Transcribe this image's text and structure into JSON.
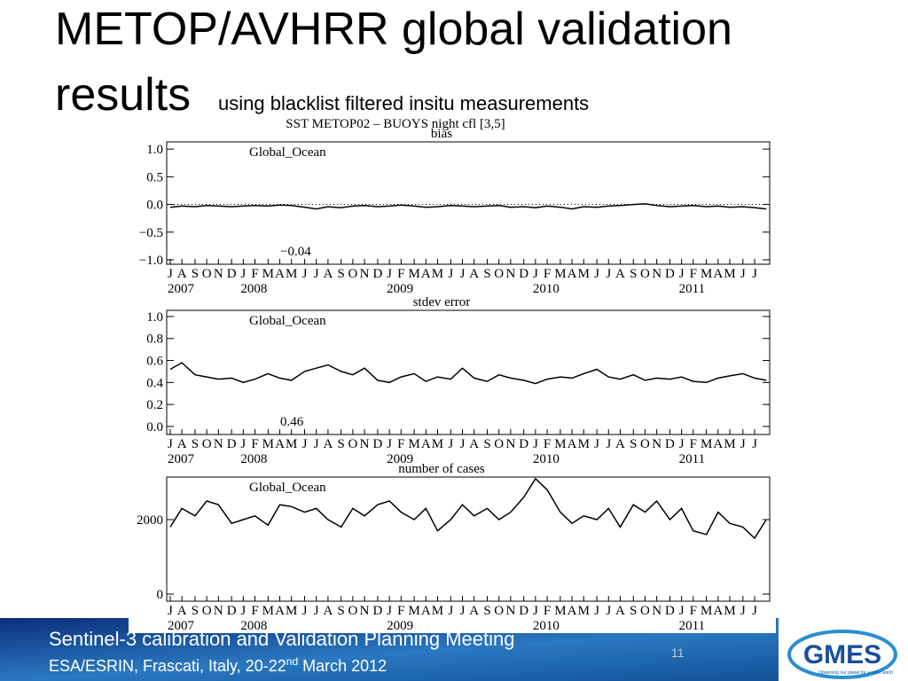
{
  "slide": {
    "title_line1": "METOP/AVHRR global validation",
    "title_line2": "results",
    "subtitle": "using blacklist filtered insitu measurements",
    "figure_title": "SST  METOP02 – BUOYS   night  cfl [3,5]",
    "footer_line1": "Sentinel-3 calibration and Validation Planning Meeting",
    "footer_line2a": "ESA/ESRIN, Frascati, Italy, 20-22",
    "footer_line2b": "nd",
    "footer_line2c": " March 2012",
    "page_number": "11",
    "logo_text": "GMES",
    "logo_tagline": "Observing our planet for a safer world"
  },
  "chart_data": [
    {
      "type": "line",
      "title": "bias",
      "region": "Global_Ocean",
      "annotation": "−0.04",
      "color": "#000000",
      "reference_line": 0,
      "x": [
        2007.5,
        2007.58,
        2007.67,
        2007.75,
        2007.83,
        2007.92,
        2008,
        2008.08,
        2008.17,
        2008.25,
        2008.33,
        2008.42,
        2008.5,
        2008.58,
        2008.67,
        2008.75,
        2008.83,
        2008.92,
        2009,
        2009.08,
        2009.17,
        2009.25,
        2009.33,
        2009.42,
        2009.5,
        2009.58,
        2009.67,
        2009.75,
        2009.83,
        2009.92,
        2010,
        2010.08,
        2010.17,
        2010.25,
        2010.33,
        2010.42,
        2010.5,
        2010.58,
        2010.67,
        2010.75,
        2010.83,
        2010.92,
        2011,
        2011.08,
        2011.17,
        2011.25,
        2011.33,
        2011.42,
        2011.5,
        2011.58
      ],
      "values": [
        -0.05,
        -0.03,
        -0.04,
        -0.02,
        -0.03,
        -0.04,
        -0.03,
        -0.02,
        -0.03,
        -0.01,
        -0.02,
        -0.05,
        -0.08,
        -0.04,
        -0.06,
        -0.03,
        -0.02,
        -0.04,
        -0.03,
        -0.01,
        -0.03,
        -0.05,
        -0.04,
        -0.02,
        -0.03,
        -0.04,
        -0.03,
        -0.02,
        -0.05,
        -0.04,
        -0.06,
        -0.03,
        -0.05,
        -0.08,
        -0.04,
        -0.05,
        -0.03,
        -0.02,
        0.0,
        0.01,
        -0.02,
        -0.04,
        -0.03,
        -0.02,
        -0.04,
        -0.03,
        -0.05,
        -0.04,
        -0.06,
        -0.08
      ],
      "xlim": [
        2007.476,
        2011.603
      ],
      "ylim": [
        -1.08,
        1.13
      ],
      "yticks": [
        {
          "value": 1,
          "label": "1.0"
        },
        0.5,
        {
          "value": 0,
          "label": "0.0"
        },
        {
          "value": -0.5,
          "label": "−0.5"
        },
        {
          "value": -1,
          "label": "−1.0"
        }
      ],
      "xticks": [
        {
          "value": 2007.5,
          "label": "J"
        },
        {
          "value": 2007.58,
          "label": "A"
        },
        {
          "value": 2007.67,
          "label": "S"
        },
        {
          "value": 2007.75,
          "label": "O"
        },
        {
          "value": 2007.83,
          "label": "N"
        },
        {
          "value": 2007.92,
          "label": "D"
        },
        {
          "value": 2008,
          "label": "J"
        },
        {
          "value": 2008.08,
          "label": "F"
        },
        {
          "value": 2008.17,
          "label": "M"
        },
        {
          "value": 2008.25,
          "label": "A"
        },
        {
          "value": 2008.33,
          "label": "M"
        },
        {
          "value": 2008.42,
          "label": "J"
        },
        {
          "value": 2008.5,
          "label": "J"
        },
        {
          "value": 2008.58,
          "label": "A"
        },
        {
          "value": 2008.67,
          "label": "S"
        },
        {
          "value": 2008.75,
          "label": "O"
        },
        {
          "value": 2008.83,
          "label": "N"
        },
        {
          "value": 2008.92,
          "label": "D"
        },
        {
          "value": 2009,
          "label": "J"
        },
        {
          "value": 2009.08,
          "label": "F"
        },
        {
          "value": 2009.17,
          "label": "M"
        },
        {
          "value": 2009.25,
          "label": "A"
        },
        {
          "value": 2009.33,
          "label": "M"
        },
        {
          "value": 2009.42,
          "label": "J"
        },
        {
          "value": 2009.5,
          "label": "J"
        },
        {
          "value": 2009.58,
          "label": "A"
        },
        {
          "value": 2009.67,
          "label": "S"
        },
        {
          "value": 2009.75,
          "label": "O"
        },
        {
          "value": 2009.83,
          "label": "N"
        },
        {
          "value": 2009.92,
          "label": "D"
        },
        {
          "value": 2010,
          "label": "J"
        },
        {
          "value": 2010.08,
          "label": "F"
        },
        {
          "value": 2010.17,
          "label": "M"
        },
        {
          "value": 2010.25,
          "label": "A"
        },
        {
          "value": 2010.33,
          "label": "M"
        },
        {
          "value": 2010.42,
          "label": "J"
        },
        {
          "value": 2010.5,
          "label": "J"
        },
        {
          "value": 2010.58,
          "label": "A"
        },
        {
          "value": 2010.67,
          "label": "S"
        },
        {
          "value": 2010.75,
          "label": "O"
        },
        {
          "value": 2010.83,
          "label": "N"
        },
        {
          "value": 2010.92,
          "label": "D"
        },
        {
          "value": 2011,
          "label": "J"
        },
        {
          "value": 2011.08,
          "label": "F"
        },
        {
          "value": 2011.17,
          "label": "M"
        },
        {
          "value": 2011.25,
          "label": "A"
        },
        {
          "value": 2011.33,
          "label": "M"
        },
        {
          "value": 2011.42,
          "label": "J"
        },
        {
          "value": 2011.5,
          "label": "J"
        }
      ],
      "year_ticks": [
        {
          "value": 2007.5,
          "label": "2007"
        },
        {
          "value": 2008,
          "label": "2008"
        },
        {
          "value": 2009,
          "label": "2009"
        },
        {
          "value": 2010,
          "label": "2010"
        },
        {
          "value": 2011,
          "label": "2011"
        }
      ]
    },
    {
      "type": "line",
      "title": "stdev error",
      "region": "Global_Ocean",
      "annotation": "0.46",
      "color": "#000000",
      "x": [
        2007.5,
        2007.58,
        2007.67,
        2007.75,
        2007.83,
        2007.92,
        2008,
        2008.08,
        2008.17,
        2008.25,
        2008.33,
        2008.42,
        2008.5,
        2008.58,
        2008.67,
        2008.75,
        2008.83,
        2008.92,
        2009,
        2009.08,
        2009.17,
        2009.25,
        2009.33,
        2009.42,
        2009.5,
        2009.58,
        2009.67,
        2009.75,
        2009.83,
        2009.92,
        2010,
        2010.08,
        2010.17,
        2010.25,
        2010.33,
        2010.42,
        2010.5,
        2010.58,
        2010.67,
        2010.75,
        2010.83,
        2010.92,
        2011,
        2011.08,
        2011.17,
        2011.25,
        2011.33,
        2011.42,
        2011.5,
        2011.58
      ],
      "values": [
        0.52,
        0.58,
        0.47,
        0.45,
        0.43,
        0.44,
        0.4,
        0.43,
        0.48,
        0.44,
        0.42,
        0.5,
        0.53,
        0.56,
        0.5,
        0.47,
        0.53,
        0.42,
        0.4,
        0.45,
        0.48,
        0.41,
        0.45,
        0.43,
        0.53,
        0.44,
        0.41,
        0.47,
        0.44,
        0.42,
        0.39,
        0.43,
        0.45,
        0.44,
        0.48,
        0.52,
        0.45,
        0.43,
        0.47,
        0.42,
        0.44,
        0.43,
        0.45,
        0.41,
        0.4,
        0.44,
        0.46,
        0.48,
        0.44,
        0.42
      ],
      "xlim": [
        2007.476,
        2011.603
      ],
      "ylim": [
        -0.073,
        1.056
      ],
      "yticks": [
        {
          "value": 1,
          "label": "1.0"
        },
        0.8,
        0.6,
        0.4,
        0.2,
        {
          "value": 0,
          "label": "0.0"
        }
      ],
      "xticks": [
        {
          "value": 2007.5,
          "label": "J"
        },
        {
          "value": 2007.58,
          "label": "A"
        },
        {
          "value": 2007.67,
          "label": "S"
        },
        {
          "value": 2007.75,
          "label": "O"
        },
        {
          "value": 2007.83,
          "label": "N"
        },
        {
          "value": 2007.92,
          "label": "D"
        },
        {
          "value": 2008,
          "label": "J"
        },
        {
          "value": 2008.08,
          "label": "F"
        },
        {
          "value": 2008.17,
          "label": "M"
        },
        {
          "value": 2008.25,
          "label": "A"
        },
        {
          "value": 2008.33,
          "label": "M"
        },
        {
          "value": 2008.42,
          "label": "J"
        },
        {
          "value": 2008.5,
          "label": "J"
        },
        {
          "value": 2008.58,
          "label": "A"
        },
        {
          "value": 2008.67,
          "label": "S"
        },
        {
          "value": 2008.75,
          "label": "O"
        },
        {
          "value": 2008.83,
          "label": "N"
        },
        {
          "value": 2008.92,
          "label": "D"
        },
        {
          "value": 2009,
          "label": "J"
        },
        {
          "value": 2009.08,
          "label": "F"
        },
        {
          "value": 2009.17,
          "label": "M"
        },
        {
          "value": 2009.25,
          "label": "A"
        },
        {
          "value": 2009.33,
          "label": "M"
        },
        {
          "value": 2009.42,
          "label": "J"
        },
        {
          "value": 2009.5,
          "label": "J"
        },
        {
          "value": 2009.58,
          "label": "A"
        },
        {
          "value": 2009.67,
          "label": "S"
        },
        {
          "value": 2009.75,
          "label": "O"
        },
        {
          "value": 2009.83,
          "label": "N"
        },
        {
          "value": 2009.92,
          "label": "D"
        },
        {
          "value": 2010,
          "label": "J"
        },
        {
          "value": 2010.08,
          "label": "F"
        },
        {
          "value": 2010.17,
          "label": "M"
        },
        {
          "value": 2010.25,
          "label": "A"
        },
        {
          "value": 2010.33,
          "label": "M"
        },
        {
          "value": 2010.42,
          "label": "J"
        },
        {
          "value": 2010.5,
          "label": "J"
        },
        {
          "value": 2010.58,
          "label": "A"
        },
        {
          "value": 2010.67,
          "label": "S"
        },
        {
          "value": 2010.75,
          "label": "O"
        },
        {
          "value": 2010.83,
          "label": "N"
        },
        {
          "value": 2010.92,
          "label": "D"
        },
        {
          "value": 2011,
          "label": "J"
        },
        {
          "value": 2011.08,
          "label": "F"
        },
        {
          "value": 2011.17,
          "label": "M"
        },
        {
          "value": 2011.25,
          "label": "A"
        },
        {
          "value": 2011.33,
          "label": "M"
        },
        {
          "value": 2011.42,
          "label": "J"
        },
        {
          "value": 2011.5,
          "label": "J"
        }
      ],
      "year_ticks": [
        {
          "value": 2007.5,
          "label": "2007"
        },
        {
          "value": 2008,
          "label": "2008"
        },
        {
          "value": 2009,
          "label": "2009"
        },
        {
          "value": 2010,
          "label": "2010"
        },
        {
          "value": 2011,
          "label": "2011"
        }
      ]
    },
    {
      "type": "line",
      "title": "number of cases",
      "region": "Global_Ocean",
      "color": "#000000",
      "x": [
        2007.5,
        2007.58,
        2007.67,
        2007.75,
        2007.83,
        2007.92,
        2008,
        2008.08,
        2008.17,
        2008.25,
        2008.33,
        2008.42,
        2008.5,
        2008.58,
        2008.67,
        2008.75,
        2008.83,
        2008.92,
        2009,
        2009.08,
        2009.17,
        2009.25,
        2009.33,
        2009.42,
        2009.5,
        2009.58,
        2009.67,
        2009.75,
        2009.83,
        2009.92,
        2010,
        2010.08,
        2010.17,
        2010.25,
        2010.33,
        2010.42,
        2010.5,
        2010.58,
        2010.67,
        2010.75,
        2010.83,
        2010.92,
        2011,
        2011.08,
        2011.17,
        2011.25,
        2011.33,
        2011.42,
        2011.5,
        2011.58
      ],
      "values": [
        1800,
        2300,
        2100,
        2500,
        2400,
        1900,
        2000,
        2100,
        1850,
        2400,
        2350,
        2200,
        2300,
        2000,
        1800,
        2300,
        2100,
        2400,
        2500,
        2200,
        2000,
        2300,
        1700,
        2000,
        2400,
        2100,
        2300,
        2000,
        2200,
        2600,
        3100,
        2800,
        2200,
        1900,
        2100,
        2000,
        2300,
        1800,
        2400,
        2200,
        2500,
        2000,
        2300,
        1700,
        1600,
        2200,
        1900,
        1800,
        1500,
        2000
      ],
      "xlim": [
        2007.476,
        2011.603
      ],
      "ylim": [
        -190,
        3143
      ],
      "yticks": [
        2000,
        0
      ],
      "xticks": [
        {
          "value": 2007.5,
          "label": "J"
        },
        {
          "value": 2007.58,
          "label": "A"
        },
        {
          "value": 2007.67,
          "label": "S"
        },
        {
          "value": 2007.75,
          "label": "O"
        },
        {
          "value": 2007.83,
          "label": "N"
        },
        {
          "value": 2007.92,
          "label": "D"
        },
        {
          "value": 2008,
          "label": "J"
        },
        {
          "value": 2008.08,
          "label": "F"
        },
        {
          "value": 2008.17,
          "label": "M"
        },
        {
          "value": 2008.25,
          "label": "A"
        },
        {
          "value": 2008.33,
          "label": "M"
        },
        {
          "value": 2008.42,
          "label": "J"
        },
        {
          "value": 2008.5,
          "label": "J"
        },
        {
          "value": 2008.58,
          "label": "A"
        },
        {
          "value": 2008.67,
          "label": "S"
        },
        {
          "value": 2008.75,
          "label": "O"
        },
        {
          "value": 2008.83,
          "label": "N"
        },
        {
          "value": 2008.92,
          "label": "D"
        },
        {
          "value": 2009,
          "label": "J"
        },
        {
          "value": 2009.08,
          "label": "F"
        },
        {
          "value": 2009.17,
          "label": "M"
        },
        {
          "value": 2009.25,
          "label": "A"
        },
        {
          "value": 2009.33,
          "label": "M"
        },
        {
          "value": 2009.42,
          "label": "J"
        },
        {
          "value": 2009.5,
          "label": "J"
        },
        {
          "value": 2009.58,
          "label": "A"
        },
        {
          "value": 2009.67,
          "label": "S"
        },
        {
          "value": 2009.75,
          "label": "O"
        },
        {
          "value": 2009.83,
          "label": "N"
        },
        {
          "value": 2009.92,
          "label": "D"
        },
        {
          "value": 2010,
          "label": "J"
        },
        {
          "value": 2010.08,
          "label": "F"
        },
        {
          "value": 2010.17,
          "label": "M"
        },
        {
          "value": 2010.25,
          "label": "A"
        },
        {
          "value": 2010.33,
          "label": "M"
        },
        {
          "value": 2010.42,
          "label": "J"
        },
        {
          "value": 2010.5,
          "label": "J"
        },
        {
          "value": 2010.58,
          "label": "A"
        },
        {
          "value": 2010.67,
          "label": "S"
        },
        {
          "value": 2010.75,
          "label": "O"
        },
        {
          "value": 2010.83,
          "label": "N"
        },
        {
          "value": 2010.92,
          "label": "D"
        },
        {
          "value": 2011,
          "label": "J"
        },
        {
          "value": 2011.08,
          "label": "F"
        },
        {
          "value": 2011.17,
          "label": "M"
        },
        {
          "value": 2011.25,
          "label": "A"
        },
        {
          "value": 2011.33,
          "label": "M"
        },
        {
          "value": 2011.42,
          "label": "J"
        },
        {
          "value": 2011.5,
          "label": "J"
        }
      ],
      "year_ticks": [
        {
          "value": 2007.5,
          "label": "2007"
        },
        {
          "value": 2008,
          "label": "2008"
        },
        {
          "value": 2009,
          "label": "2009"
        },
        {
          "value": 2010,
          "label": "2010"
        },
        {
          "value": 2011,
          "label": "2011"
        }
      ]
    }
  ]
}
